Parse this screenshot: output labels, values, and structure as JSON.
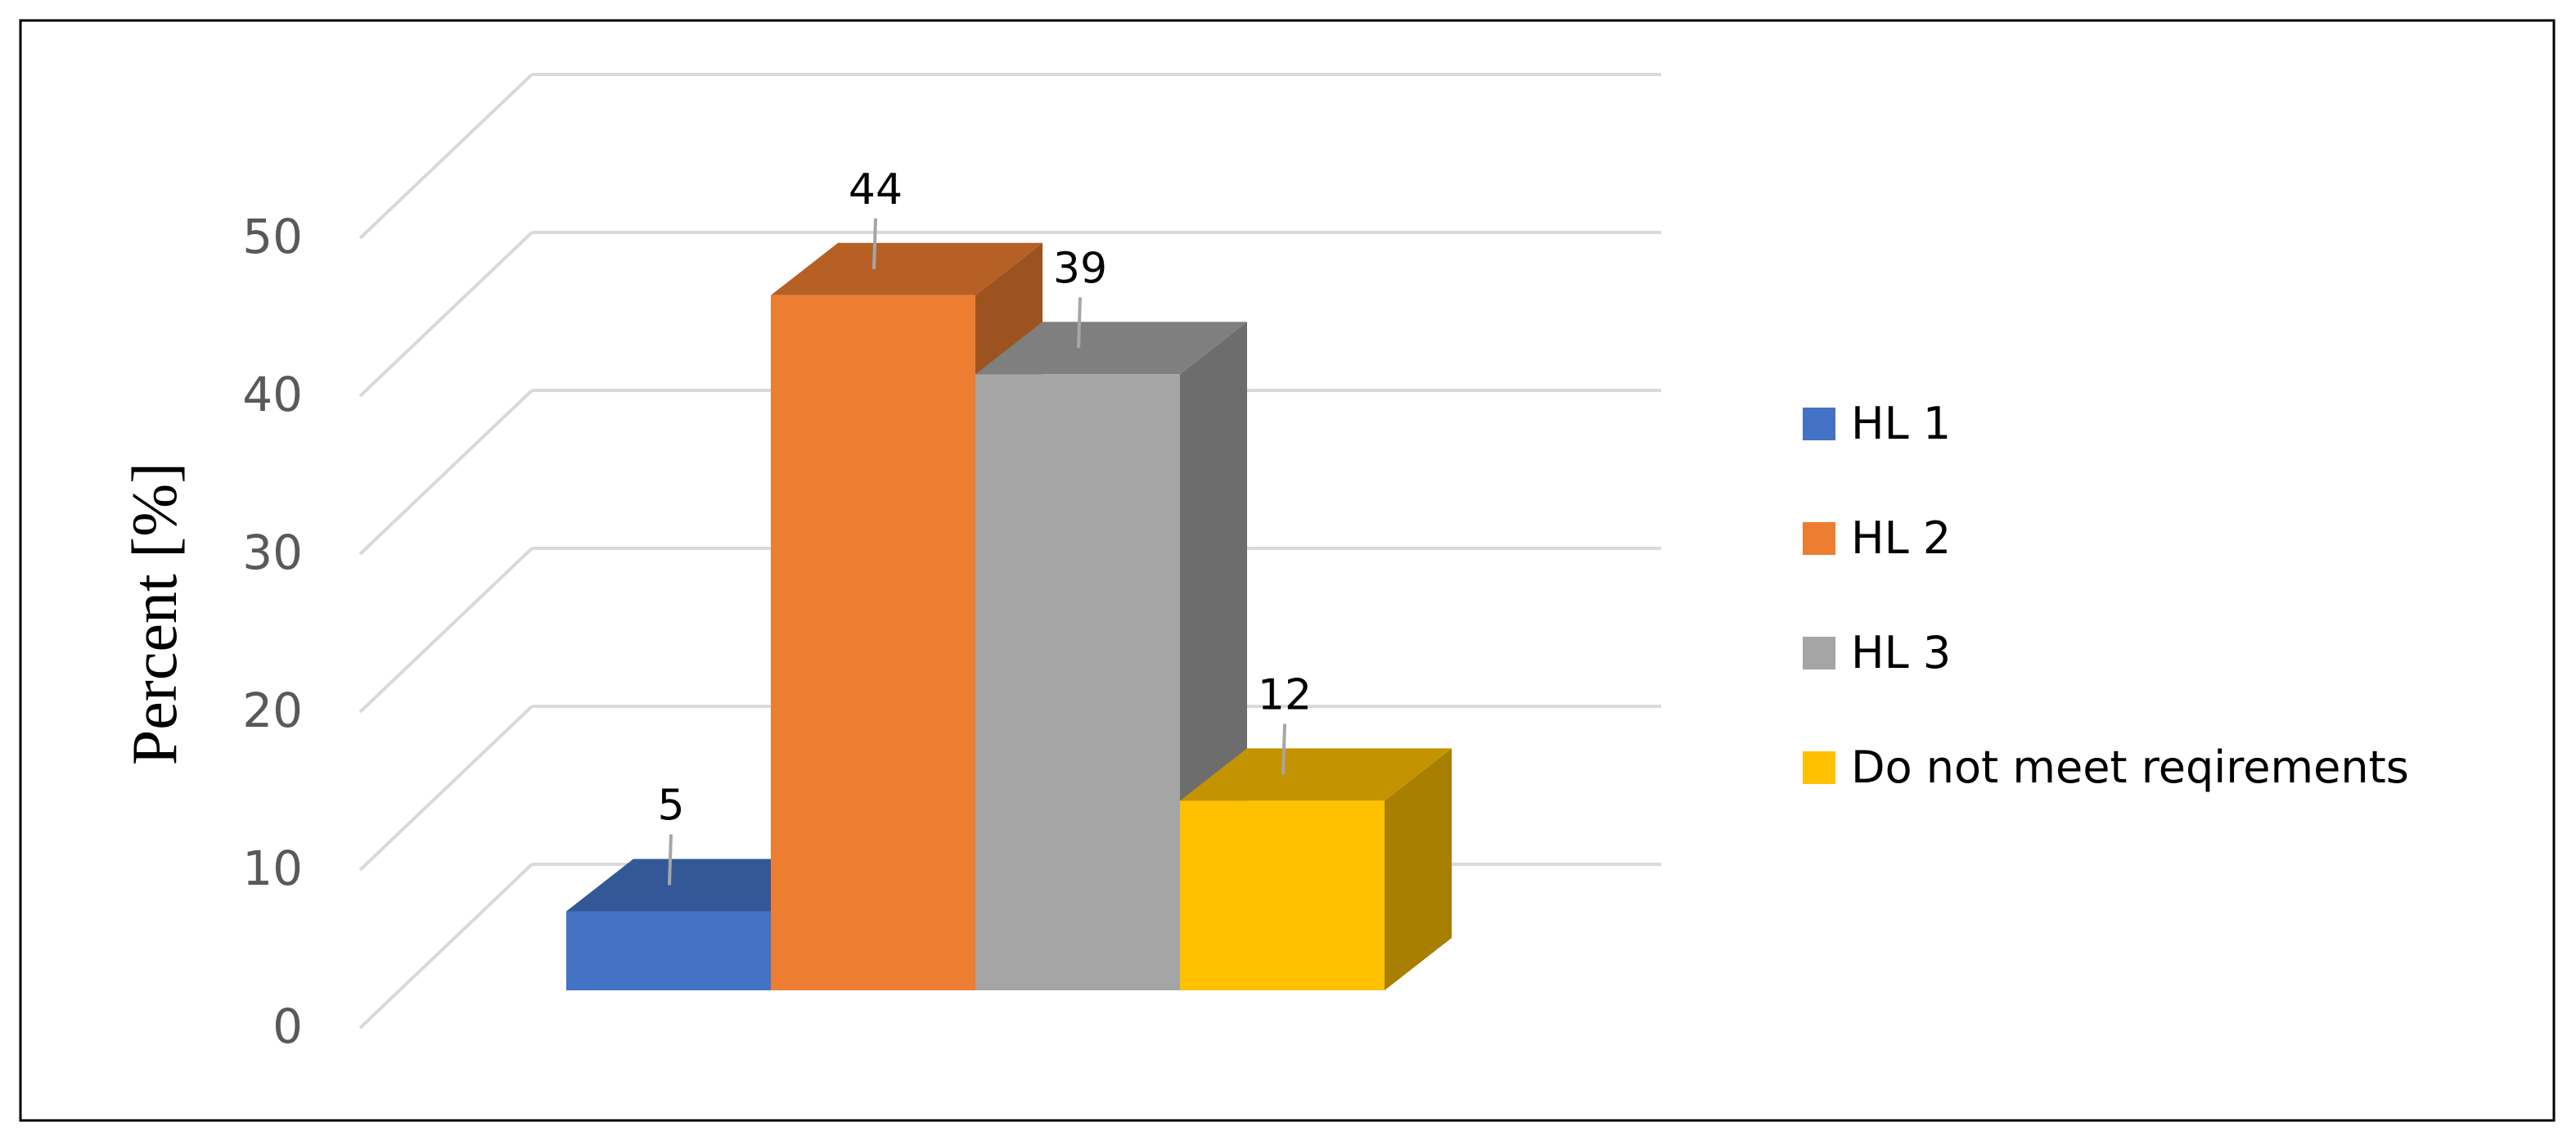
{
  "chart_data": {
    "type": "bar",
    "style": "3d-column",
    "title": "",
    "xlabel": "",
    "ylabel": "Percent [%]",
    "ylim": [
      0,
      50
    ],
    "yticks": [
      0,
      10,
      20,
      30,
      40,
      50
    ],
    "grid": true,
    "legend_position": "right",
    "series": [
      {
        "name": "HL 1",
        "value": 5,
        "label": "5",
        "color": "#4472C4"
      },
      {
        "name": "HL 2",
        "value": 44,
        "label": "44",
        "color": "#ED7D31"
      },
      {
        "name": "HL 3",
        "value": 39,
        "label": "39",
        "color": "#A5A5A5"
      },
      {
        "name": "Do not meet reqirements",
        "value": 12,
        "label": "12",
        "color": "#FFC000"
      }
    ]
  }
}
